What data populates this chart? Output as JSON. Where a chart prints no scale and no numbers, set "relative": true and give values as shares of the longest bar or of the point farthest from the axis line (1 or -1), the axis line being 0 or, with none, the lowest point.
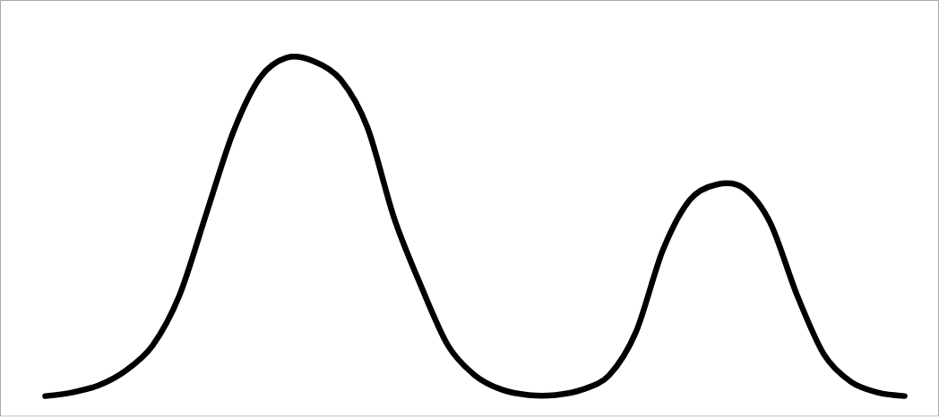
{
  "chart_data": {
    "type": "line",
    "relative": true,
    "color": "#000000",
    "categories": [
      null,
      null,
      null,
      null,
      null,
      null,
      null,
      null,
      null,
      null,
      null,
      null,
      null,
      null,
      null,
      null,
      null,
      null,
      null,
      null,
      null,
      null,
      null,
      null,
      null,
      null,
      null,
      null,
      null,
      null,
      null,
      null,
      null
    ],
    "values": [
      0.056,
      0.066,
      0.086,
      0.127,
      0.197,
      0.337,
      0.565,
      0.792,
      0.944,
      1,
      0.99,
      0.939,
      0.805,
      0.551,
      0.362,
      0.197,
      0.114,
      0.074,
      0.059,
      0.059,
      0.074,
      0.114,
      0.235,
      0.463,
      0.603,
      0.646,
      0.636,
      0.539,
      0.337,
      0.172,
      0.096,
      0.066,
      0.056
    ]
  }
}
